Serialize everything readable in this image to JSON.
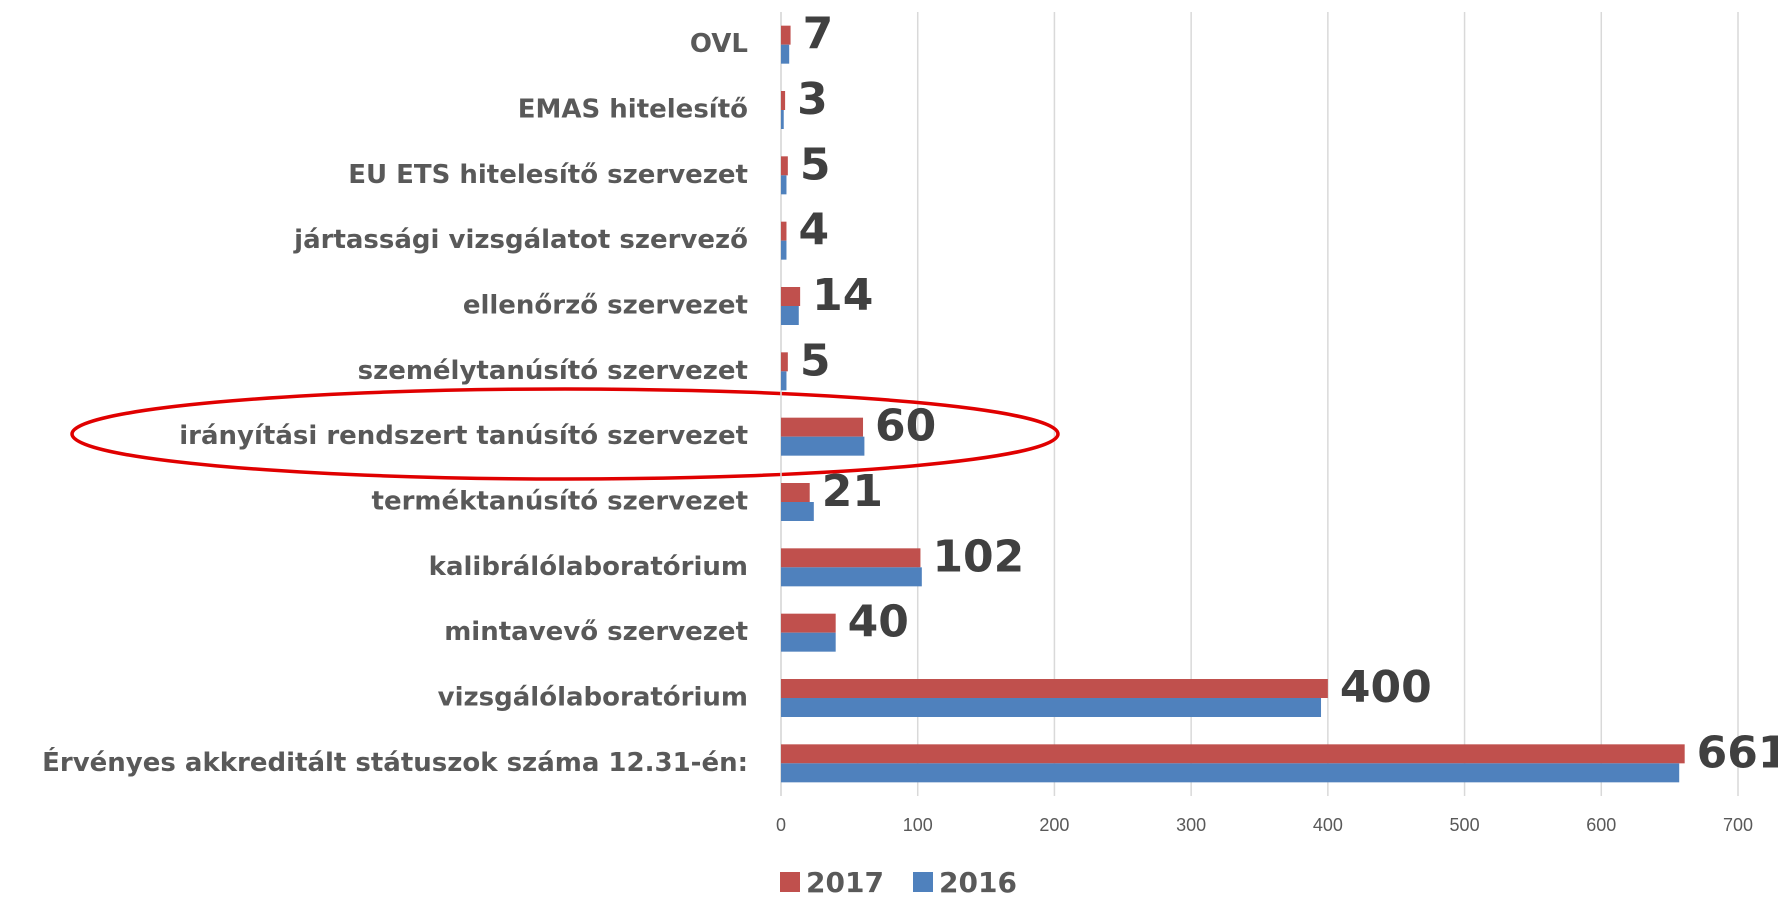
{
  "chart_data": {
    "type": "hbar",
    "categories": [
      "OVL",
      "EMAS hitelesítő",
      "EU ETS hitelesítő szervezet",
      "jártassági vizsgálatot szervező",
      "ellenőrző szervezet",
      "személytanúsító szervezet",
      "irányítási rendszert tanúsító szervezet",
      "terméktanúsító szervezet",
      "kalibrálólaboratórium",
      "mintavevő szervezet",
      "vizsgálólaboratórium",
      "Érvényes akkreditált státuszok száma 12.31-én:"
    ],
    "series": [
      {
        "name": "2017",
        "color": "#c0504d",
        "values": [
          7,
          3,
          5,
          4,
          14,
          5,
          60,
          21,
          102,
          40,
          400,
          661
        ]
      },
      {
        "name": "2016",
        "color": "#4f81bd",
        "values": [
          6,
          2,
          4,
          4,
          13,
          4,
          61,
          24,
          103,
          40,
          395,
          657
        ]
      }
    ],
    "xlim": [
      0,
      700
    ],
    "xticks": [
      0,
      100,
      200,
      300,
      400,
      500,
      600,
      700
    ],
    "grid": true
  }
}
